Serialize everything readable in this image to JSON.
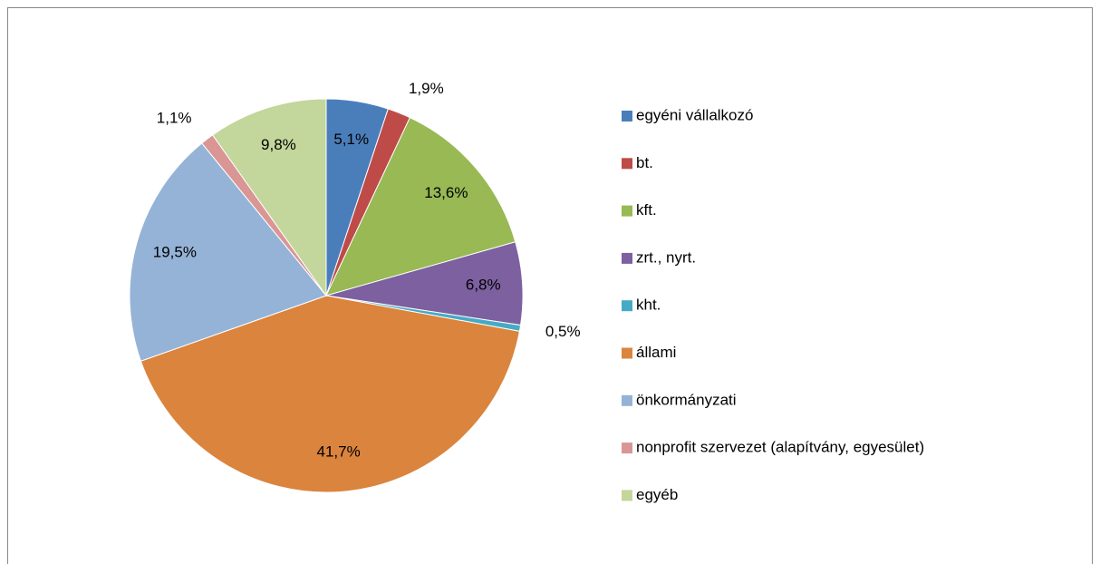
{
  "chart_data": {
    "type": "pie",
    "categories": [
      "egyéni vállalkozó",
      "bt.",
      "kft.",
      "zrt., nyrt.",
      "kht.",
      "állami",
      "önkormányzati",
      "nonprofit szervezet (alapítvány, egyesület)",
      "egyéb"
    ],
    "values": [
      5.1,
      1.9,
      13.6,
      6.8,
      0.5,
      41.7,
      19.5,
      1.1,
      9.8
    ],
    "value_labels": [
      "5,1%",
      "1,9%",
      "13,6%",
      "6,8%",
      "0,5%",
      "41,7%",
      "19,5%",
      "1,1%",
      "9,8%"
    ],
    "colors": [
      "#4a7ebb",
      "#be4b48",
      "#98b954",
      "#7d60a0",
      "#46aac5",
      "#db843d",
      "#95b3d7",
      "#d99694",
      "#c3d69b"
    ],
    "legend": "right"
  }
}
